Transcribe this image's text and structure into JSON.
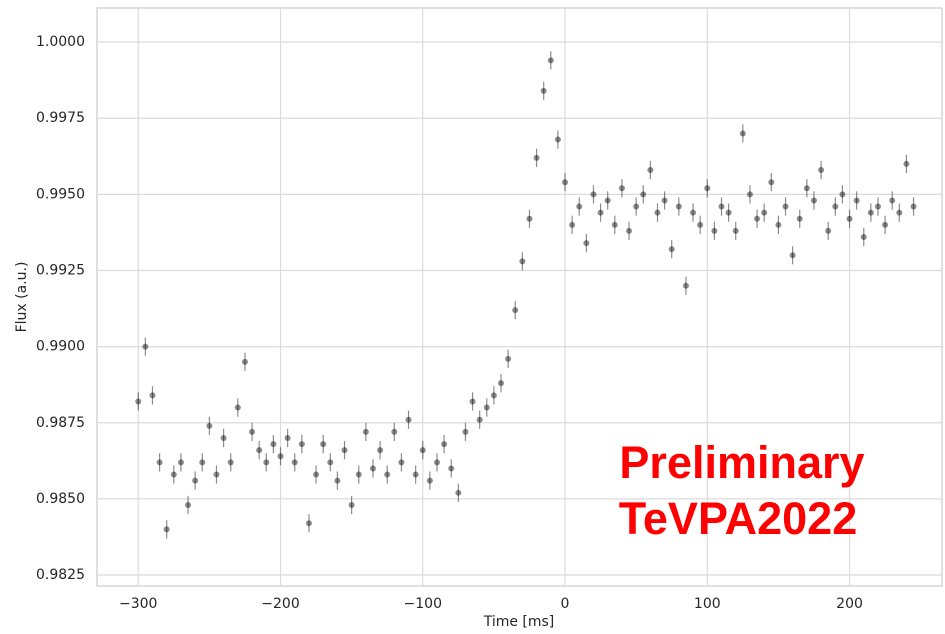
{
  "chart_data": {
    "type": "scatter",
    "xlabel": "Time [ms]",
    "ylabel": "Flux (a.u.)",
    "annotations": [
      "Preliminary",
      "TeVPA2022"
    ],
    "xlim": [
      -329,
      265
    ],
    "xticks": [
      {
        "value": -300,
        "label": "−300"
      },
      {
        "value": -200,
        "label": "−200"
      },
      {
        "value": -100,
        "label": "−100"
      },
      0,
      100,
      200
    ],
    "ylim": [
      0.98214,
      1.00112
    ],
    "yticks": [
      0.9825,
      {
        "value": 0.985,
        "label": "0.9850"
      },
      0.9875,
      {
        "value": 0.99,
        "label": "0.9900"
      },
      0.9925,
      {
        "value": 0.995,
        "label": "0.9950"
      },
      0.9975,
      {
        "value": 1,
        "label": "1.0000"
      }
    ],
    "grid": true,
    "series": [
      {
        "color": "#000000",
        "error": 0.0003,
        "x": [
          -300,
          -295,
          -290,
          -285,
          -280,
          -275,
          -270,
          -265,
          -260,
          -255,
          -250,
          -245,
          -240,
          -235,
          -230,
          -225,
          -220,
          -215,
          -210,
          -205,
          -200,
          -195,
          -190,
          -185,
          -180,
          -175,
          -170,
          -165,
          -160,
          -155,
          -150,
          -145,
          -140,
          -135,
          -130,
          -125,
          -120,
          -115,
          -110,
          -105,
          -100,
          -95,
          -90,
          -85,
          -80,
          -75,
          -70,
          -65,
          -60,
          -55,
          -50,
          -45,
          -40,
          -35,
          -30,
          -25,
          -20,
          -15,
          -10,
          -5,
          0,
          5,
          10,
          15,
          20,
          25,
          30,
          35,
          40,
          45,
          50,
          55,
          60,
          65,
          70,
          75,
          80,
          85,
          90,
          95,
          100,
          105,
          110,
          115,
          120,
          125,
          130,
          135,
          140,
          145,
          150,
          155,
          160,
          165,
          170,
          175,
          180,
          185,
          190,
          195,
          200,
          205,
          210,
          215,
          220,
          225,
          230,
          235,
          240,
          245
        ],
        "values": [
          0.9882,
          0.99,
          0.9884,
          0.9862,
          0.984,
          0.9858,
          0.9862,
          0.9848,
          0.9856,
          0.9862,
          0.9874,
          0.9858,
          0.987,
          0.9862,
          0.988,
          0.9895,
          0.9872,
          0.9866,
          0.9862,
          0.9868,
          0.9864,
          0.987,
          0.9862,
          0.9868,
          0.9842,
          0.9858,
          0.9868,
          0.9862,
          0.9856,
          0.9866,
          0.9848,
          0.9858,
          0.9872,
          0.986,
          0.9866,
          0.9858,
          0.9872,
          0.9862,
          0.9876,
          0.9858,
          0.9866,
          0.9856,
          0.9862,
          0.9868,
          0.986,
          0.9852,
          0.9872,
          0.9882,
          0.9876,
          0.988,
          0.9884,
          0.9888,
          0.9896,
          0.9912,
          0.9928,
          0.9942,
          0.9962,
          0.9984,
          0.9994,
          0.9968,
          0.9954,
          0.994,
          0.9946,
          0.9934,
          0.995,
          0.9944,
          0.9948,
          0.994,
          0.9952,
          0.9938,
          0.9946,
          0.995,
          0.9958,
          0.9944,
          0.9948,
          0.9932,
          0.9946,
          0.992,
          0.9944,
          0.994,
          0.9952,
          0.9938,
          0.9946,
          0.9944,
          0.9938,
          0.997,
          0.995,
          0.9942,
          0.9944,
          0.9954,
          0.994,
          0.9946,
          0.993,
          0.9942,
          0.9952,
          0.9948,
          0.9958,
          0.9938,
          0.9946,
          0.995,
          0.9942,
          0.9948,
          0.9936,
          0.9944,
          0.9946,
          0.994,
          0.9948,
          0.9944,
          0.996,
          0.9946
        ]
      }
    ]
  }
}
